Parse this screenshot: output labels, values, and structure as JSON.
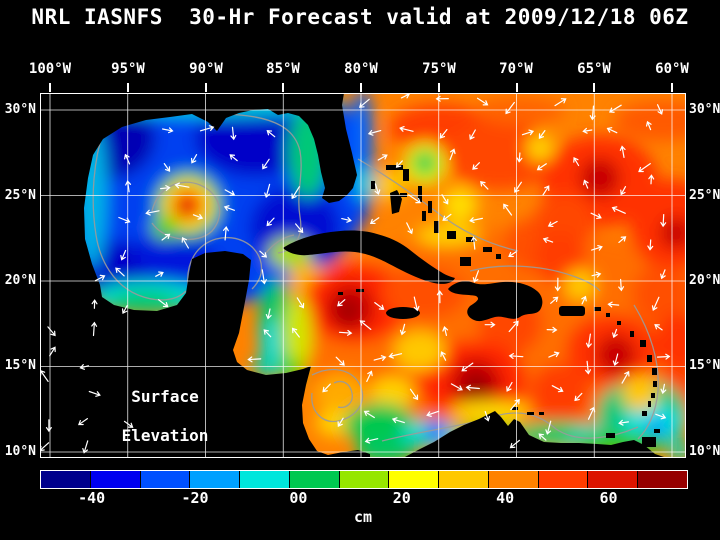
{
  "title": "NRL IASNFS  30-Hr Forecast valid at 2009/12/18 06Z",
  "axes": {
    "top_labels": [
      "100°W",
      "95°W",
      "90°W",
      "85°W",
      "80°W",
      "75°W",
      "70°W",
      "65°W",
      "60°W"
    ],
    "left_labels": [
      "30°N",
      "25°N",
      "20°N",
      "15°N",
      "10°N"
    ],
    "right_labels": [
      "30°N",
      "25°N",
      "20°N",
      "15°N",
      "10°N"
    ]
  },
  "map": {
    "annotation_line1": "Surface",
    "annotation_line2": "Elevation",
    "land_color": "#000000",
    "grid_color": "#ffffff",
    "contour_color": "#9b9b9b",
    "vector_color": "#ffffff"
  },
  "colorbar": {
    "unit": "cm",
    "range_min": -50,
    "range_max": 75,
    "tick_values": [
      -40,
      -20,
      0,
      20,
      40,
      60
    ],
    "tick_labels": [
      "-40",
      "-20",
      "00",
      "20",
      "40",
      "60"
    ],
    "colors": [
      "#00008c",
      "#0000f0",
      "#0050ff",
      "#00a0ff",
      "#00e6dc",
      "#00c850",
      "#96e600",
      "#ffff00",
      "#ffc800",
      "#ff8200",
      "#ff3c00",
      "#dc1400",
      "#960000"
    ]
  }
}
